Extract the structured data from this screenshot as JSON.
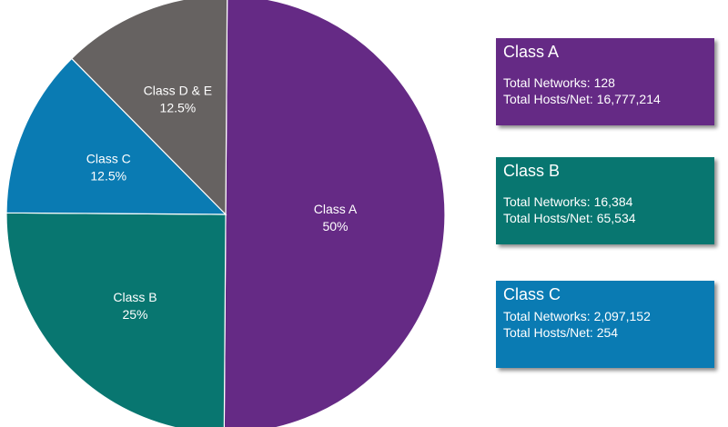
{
  "chart_data": {
    "type": "pie",
    "slices": [
      {
        "name": "Class A",
        "percent_label": "50%",
        "value": 50,
        "color": "#652a85"
      },
      {
        "name": "Class B",
        "percent_label": "25%",
        "value": 25,
        "color": "#087670"
      },
      {
        "name": "Class C",
        "percent_label": "12.5%",
        "value": 12.5,
        "color": "#0a7bb3"
      },
      {
        "name": "Class D & E",
        "percent_label": "12.5%",
        "value": 12.5,
        "color": "#666261"
      }
    ]
  },
  "cards": {
    "a": {
      "title": "Class A",
      "networks": "Total Networks: 128",
      "hosts": "Total Hosts/Net: 16,777,214",
      "color": "#652a85"
    },
    "b": {
      "title": "Class B",
      "networks": "Total Networks: 16,384",
      "hosts": "Total Hosts/Net: 65,534",
      "color": "#087670"
    },
    "c": {
      "title": "Class C",
      "networks": "Total Networks: 2,097,152",
      "hosts": "Total Hosts/Net: 254",
      "color": "#0a7bb3"
    }
  }
}
